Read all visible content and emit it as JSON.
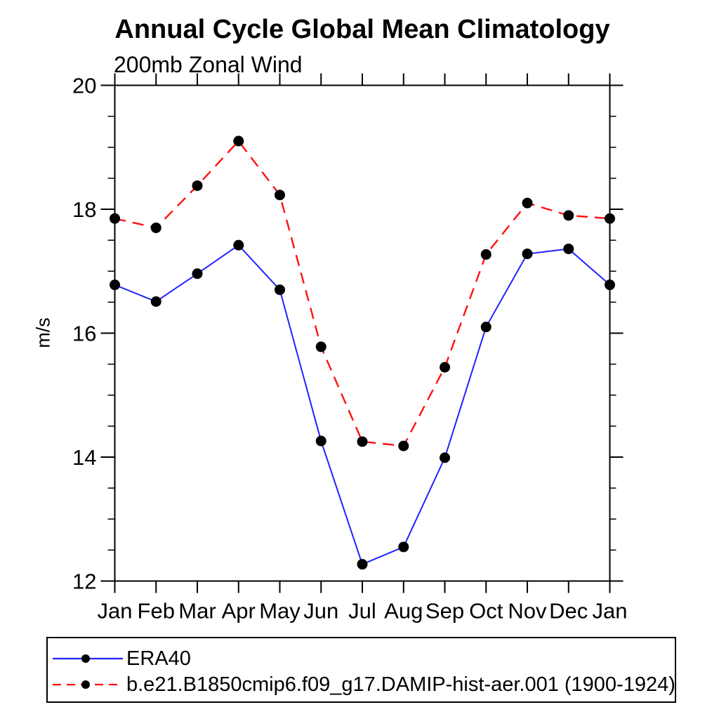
{
  "chart": {
    "title": "Annual Cycle Global Mean Climatology",
    "subtitle": "200mb Zonal Wind",
    "ylabel": "m/s"
  },
  "chart_data": {
    "type": "line",
    "title": "Annual Cycle Global Mean Climatology",
    "subtitle": "200mb Zonal Wind",
    "xlabel": "",
    "ylabel": "m/s",
    "categories": [
      "Jan",
      "Feb",
      "Mar",
      "Apr",
      "May",
      "Jun",
      "Jul",
      "Aug",
      "Sep",
      "Oct",
      "Nov",
      "Dec",
      "Jan"
    ],
    "ylim": [
      12,
      20
    ],
    "ytick_major": [
      12,
      14,
      16,
      18,
      20
    ],
    "ytick_minor_step": 0.5,
    "grid": false,
    "legend_position": "bottom-left-box",
    "axis_color": "#000000",
    "marker": {
      "shape": "circle",
      "color": "#000000",
      "radius": 7.5
    },
    "series": [
      {
        "name": "ERA40",
        "color": "#2222ff",
        "style": "solid",
        "values": [
          16.78,
          16.51,
          16.96,
          17.42,
          16.7,
          14.26,
          12.27,
          12.55,
          13.99,
          16.1,
          17.28,
          17.36,
          16.78
        ]
      },
      {
        "name": "b.e21.B1850cmip6.f09_g17.DAMIP-hist-aer.001 (1900-1924)",
        "color": "#ff1111",
        "style": "dashed",
        "values": [
          17.85,
          17.7,
          18.38,
          19.1,
          18.23,
          15.78,
          14.25,
          14.18,
          15.45,
          17.27,
          18.1,
          17.9,
          17.85
        ]
      }
    ]
  }
}
